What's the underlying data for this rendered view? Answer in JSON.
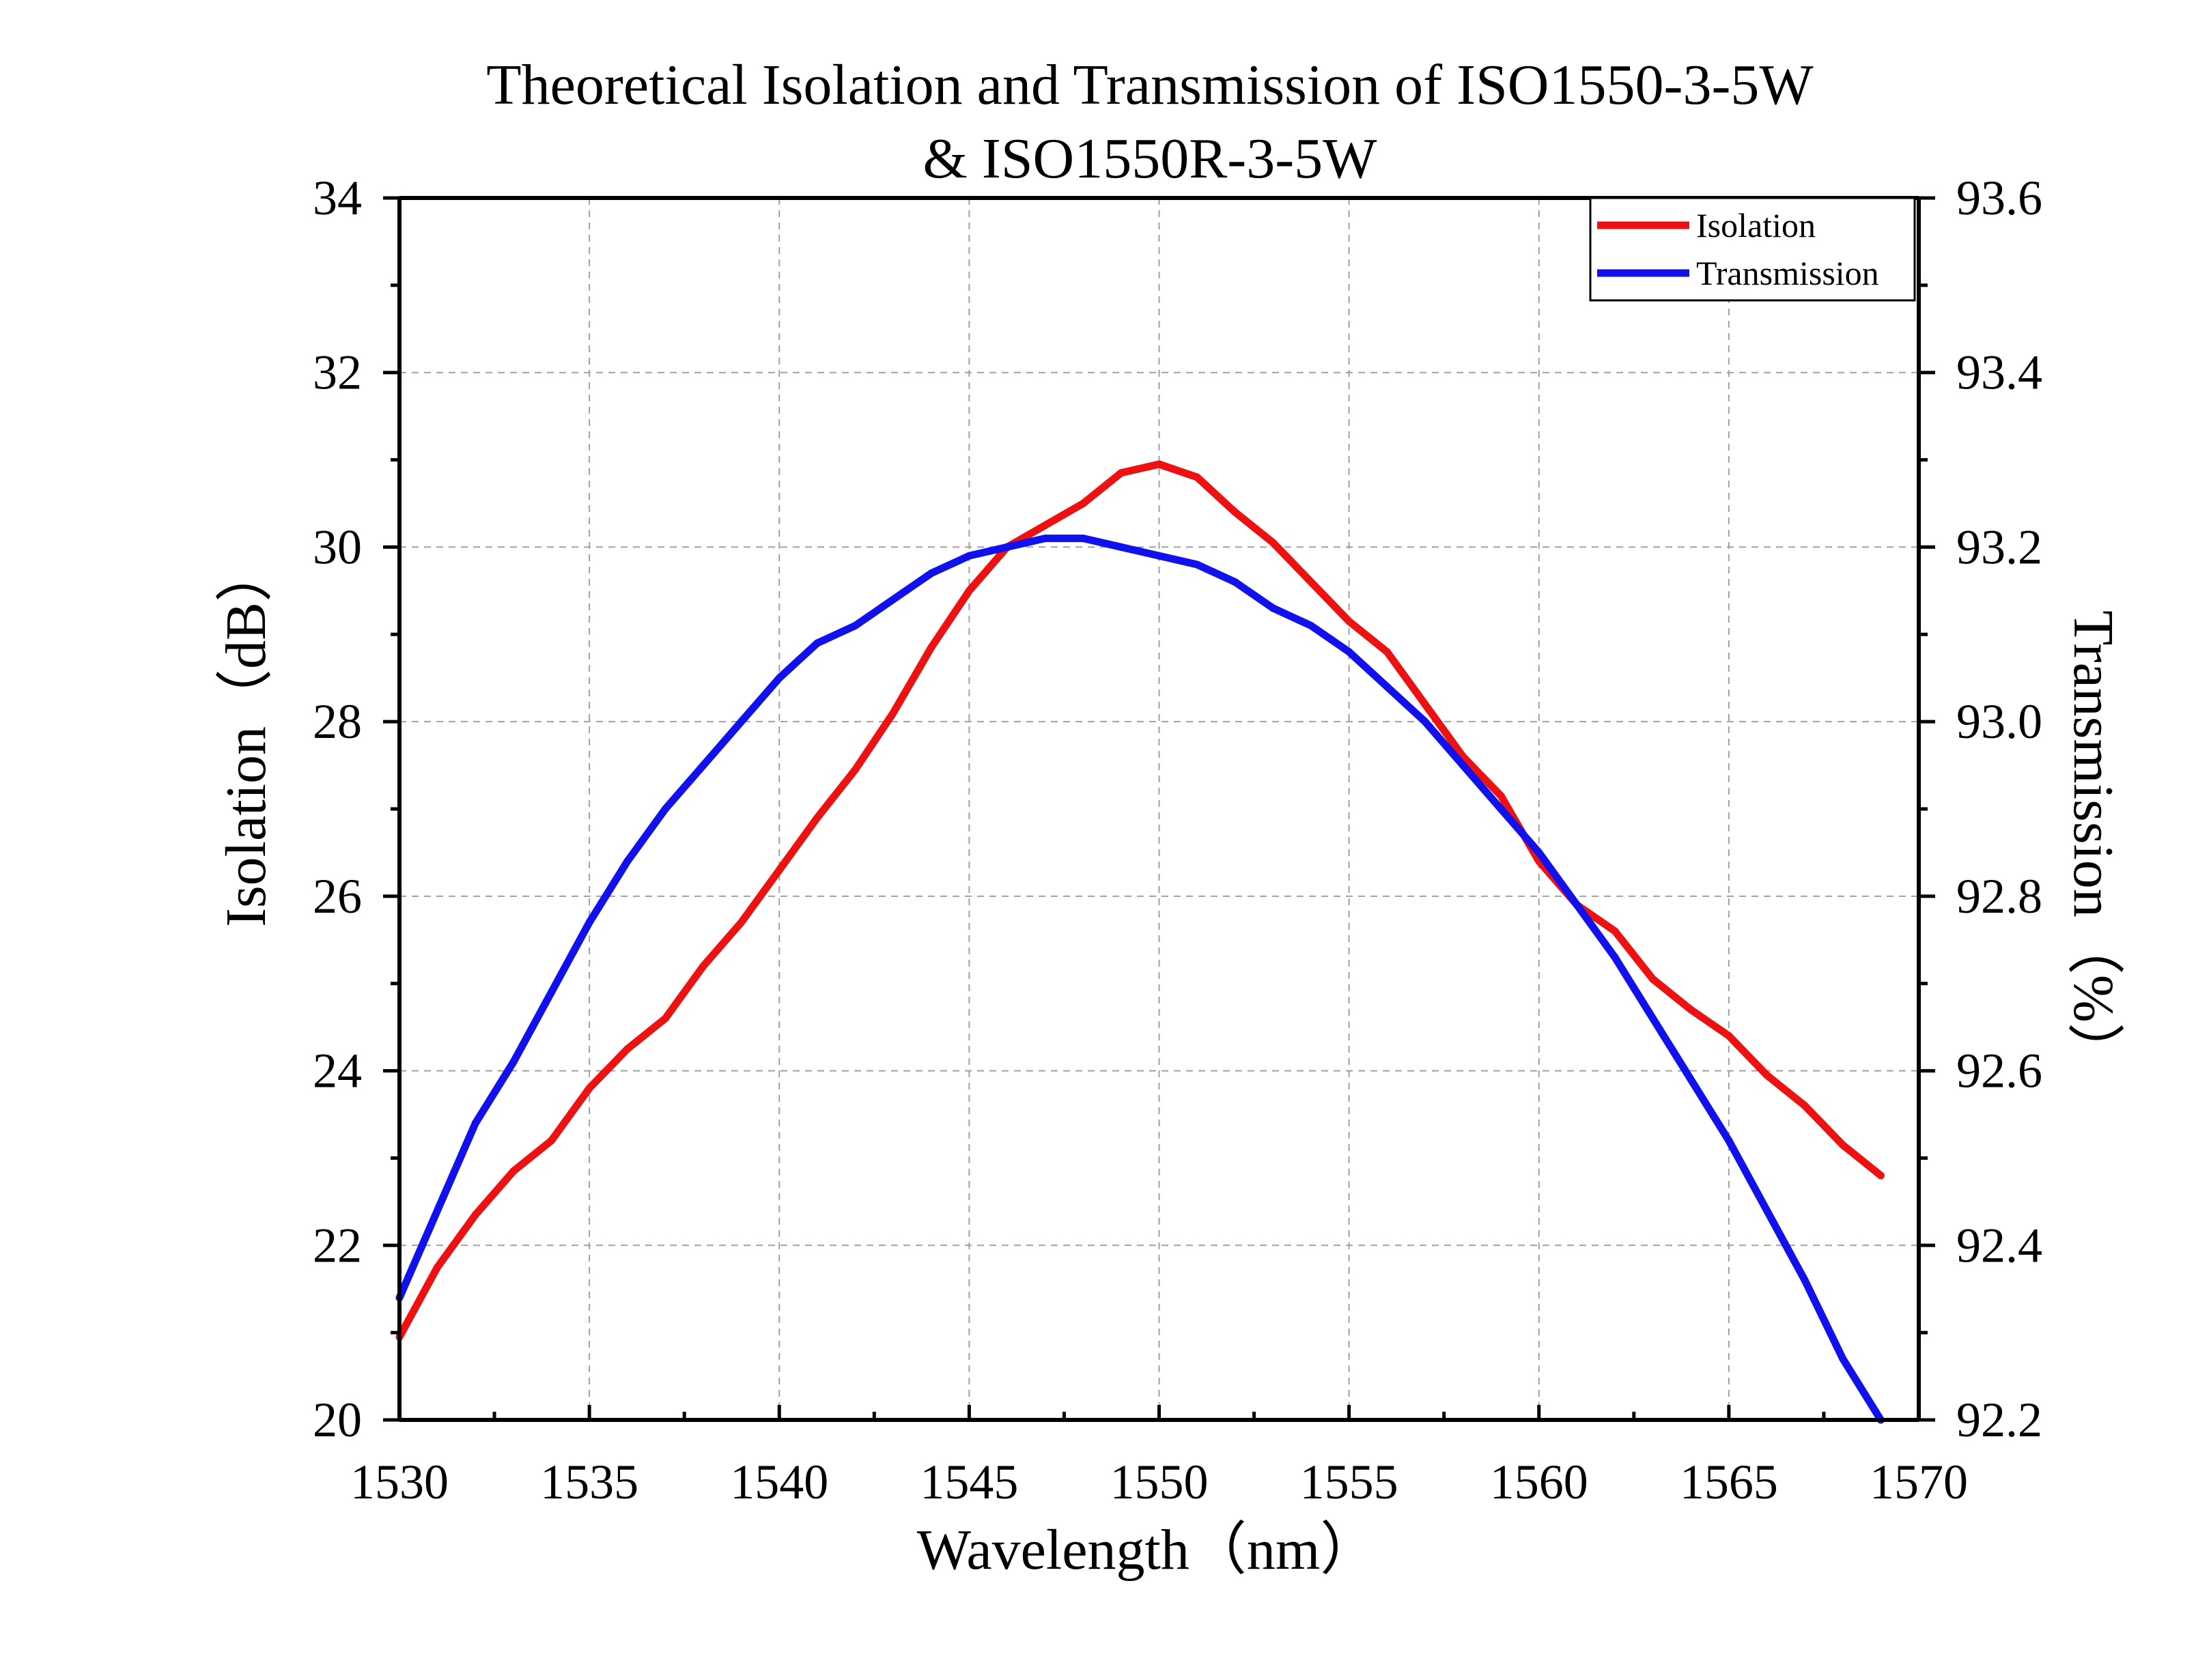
{
  "chart_data": {
    "type": "line",
    "title_line1": "Theoretical Isolation and Transmission of ISO1550-3-5W",
    "title_line2": "& ISO1550R-3-5W",
    "xlabel": "Wavelength（nm）",
    "ylabel_left": "Isolation（dB）",
    "ylabel_right": "Transmission（%）",
    "xlim": [
      1530,
      1570
    ],
    "ylim_left": [
      20,
      34
    ],
    "ylim_right": [
      92.2,
      93.6
    ],
    "x_ticks": [
      "1530",
      "1535",
      "1540",
      "1545",
      "1550",
      "1555",
      "1560",
      "1565",
      "1570"
    ],
    "y_left_ticks": [
      "20",
      "22",
      "24",
      "26",
      "28",
      "30",
      "32",
      "34"
    ],
    "y_right_ticks": [
      "92.2",
      "92.4",
      "92.6",
      "92.8",
      "93.0",
      "93.2",
      "93.4",
      "93.6"
    ],
    "grid": true,
    "legend_position": "top-right",
    "series": [
      {
        "name": "Isolation",
        "color": "#ee1111",
        "axis": "left",
        "x": [
          1530,
          1531,
          1532,
          1533,
          1534,
          1535,
          1536,
          1537,
          1538,
          1539,
          1540,
          1541,
          1542,
          1543,
          1544,
          1545,
          1546,
          1547,
          1548,
          1549,
          1550,
          1551,
          1552,
          1553,
          1554,
          1555,
          1556,
          1557,
          1558,
          1559,
          1560,
          1561,
          1562,
          1563,
          1564,
          1565,
          1566,
          1567,
          1568,
          1569
        ],
        "values": [
          20.95,
          21.75,
          22.35,
          22.85,
          23.2,
          23.8,
          24.25,
          24.6,
          25.2,
          25.7,
          26.3,
          26.9,
          27.45,
          28.1,
          28.85,
          29.5,
          30.0,
          30.25,
          30.5,
          30.85,
          30.95,
          30.8,
          30.4,
          30.05,
          29.6,
          29.15,
          28.8,
          28.2,
          27.6,
          27.15,
          26.4,
          25.9,
          25.6,
          25.05,
          24.7,
          24.4,
          23.95,
          23.6,
          23.15,
          22.8
        ]
      },
      {
        "name": "Transmission",
        "color": "#1111ee",
        "axis": "right",
        "x": [
          1530,
          1531,
          1532,
          1533,
          1534,
          1535,
          1536,
          1537,
          1538,
          1539,
          1540,
          1541,
          1542,
          1543,
          1544,
          1545,
          1546,
          1547,
          1548,
          1549,
          1550,
          1551,
          1552,
          1553,
          1554,
          1555,
          1556,
          1557,
          1558,
          1559,
          1560,
          1561,
          1562,
          1563,
          1564,
          1565,
          1566,
          1567,
          1568,
          1569
        ],
        "values": [
          92.34,
          92.44,
          92.54,
          92.61,
          92.69,
          92.77,
          92.84,
          92.9,
          92.95,
          93.0,
          93.05,
          93.09,
          93.11,
          93.14,
          93.17,
          93.19,
          93.2,
          93.21,
          93.21,
          93.2,
          93.19,
          93.18,
          93.16,
          93.13,
          93.11,
          93.08,
          93.04,
          93.0,
          92.95,
          92.9,
          92.85,
          92.79,
          92.73,
          92.66,
          92.59,
          92.52,
          92.44,
          92.36,
          92.27,
          92.2
        ]
      }
    ]
  }
}
